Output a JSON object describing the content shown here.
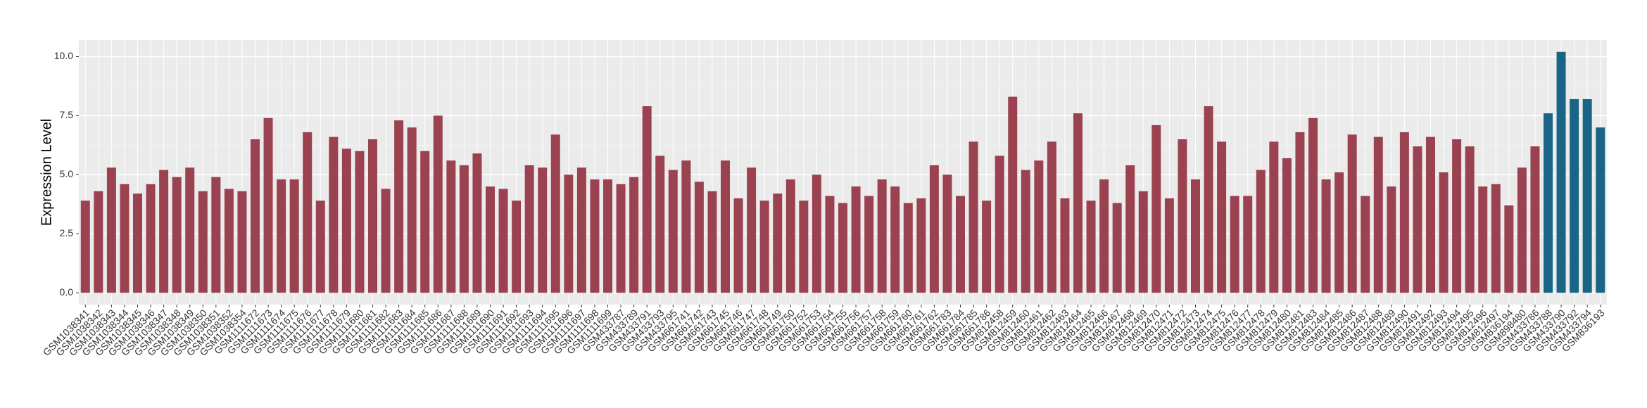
{
  "chart_data": {
    "type": "bar",
    "y_label": "Expression Level",
    "categories": [
      "GSM1038341",
      "GSM1038342",
      "GSM1038343",
      "GSM1038344",
      "GSM1038345",
      "GSM1038346",
      "GSM1038347",
      "GSM1038348",
      "GSM1038349",
      "GSM1038350",
      "GSM1038351",
      "GSM1038352",
      "GSM1038354",
      "GSM1111672",
      "GSM1111673",
      "GSM1111674",
      "GSM1111675",
      "GSM1111676",
      "GSM1111677",
      "GSM1111678",
      "GSM1111679",
      "GSM1111680",
      "GSM1111681",
      "GSM1111682",
      "GSM1111683",
      "GSM1111684",
      "GSM1111685",
      "GSM1111686",
      "GSM1111687",
      "GSM1111688",
      "GSM1111689",
      "GSM1111690",
      "GSM1111691",
      "GSM1111692",
      "GSM1111693",
      "GSM1111694",
      "GSM1111695",
      "GSM1111696",
      "GSM1111697",
      "GSM1111698",
      "GSM1111699",
      "GSM433787",
      "GSM433789",
      "GSM433791",
      "GSM433793",
      "GSM433795",
      "GSM661741",
      "GSM661742",
      "GSM661743",
      "GSM661745",
      "GSM661746",
      "GSM661747",
      "GSM661748",
      "GSM661749",
      "GSM661750",
      "GSM661752",
      "GSM661753",
      "GSM661754",
      "GSM661755",
      "GSM661756",
      "GSM661757",
      "GSM661758",
      "GSM661759",
      "GSM661760",
      "GSM661761",
      "GSM661762",
      "GSM661783",
      "GSM661784",
      "GSM661785",
      "GSM661786",
      "GSM812458",
      "GSM812459",
      "GSM812460",
      "GSM812461",
      "GSM812462",
      "GSM812463",
      "GSM812464",
      "GSM812465",
      "GSM812466",
      "GSM812467",
      "GSM812468",
      "GSM812469",
      "GSM812470",
      "GSM812471",
      "GSM812472",
      "GSM812473",
      "GSM812474",
      "GSM812475",
      "GSM812476",
      "GSM812477",
      "GSM812478",
      "GSM812479",
      "GSM812480",
      "GSM812481",
      "GSM812483",
      "GSM812484",
      "GSM812485",
      "GSM812486",
      "GSM812487",
      "GSM812488",
      "GSM812489",
      "GSM812490",
      "GSM812491",
      "GSM812492",
      "GSM812493",
      "GSM812494",
      "GSM812495",
      "GSM812496",
      "GSM812497",
      "GSM836194",
      "GSM898480",
      "GSM433786",
      "GSM433788",
      "GSM433790",
      "GSM433792",
      "GSM433794",
      "GSM836193"
    ],
    "values": [
      3.9,
      4.3,
      5.3,
      4.6,
      4.2,
      4.6,
      5.2,
      4.9,
      5.3,
      4.3,
      4.9,
      4.4,
      4.3,
      6.5,
      7.4,
      4.8,
      4.8,
      6.8,
      3.9,
      6.6,
      6.1,
      6.0,
      6.5,
      4.4,
      7.3,
      7.0,
      6.0,
      7.5,
      5.6,
      5.4,
      5.9,
      4.5,
      4.4,
      3.9,
      5.4,
      5.3,
      6.7,
      5.0,
      5.3,
      4.8,
      4.8,
      4.6,
      4.9,
      7.9,
      5.8,
      5.2,
      5.6,
      4.7,
      4.3,
      5.6,
      4.0,
      5.3,
      3.9,
      4.2,
      4.8,
      3.9,
      5.0,
      4.1,
      3.8,
      4.5,
      4.1,
      4.8,
      4.5,
      3.8,
      4.0,
      5.4,
      5.0,
      4.1,
      6.4,
      3.9,
      5.8,
      8.3,
      5.2,
      5.6,
      6.4,
      4.0,
      7.6,
      3.9,
      4.8,
      3.8,
      5.4,
      4.3,
      7.1,
      4.0,
      6.5,
      4.8,
      7.9,
      6.4,
      4.1,
      4.1,
      5.2,
      6.4,
      5.7,
      6.8,
      7.4,
      4.8,
      5.1,
      6.7,
      4.1,
      6.6,
      4.5,
      6.8,
      6.2,
      6.6,
      5.1,
      6.5,
      6.2,
      4.5,
      4.6,
      3.7,
      5.3,
      6.2,
      7.6,
      10.2,
      8.2,
      8.2,
      7.0
    ],
    "colors": [
      "#9b4250",
      "#9b4250",
      "#9b4250",
      "#9b4250",
      "#9b4250",
      "#9b4250",
      "#9b4250",
      "#9b4250",
      "#9b4250",
      "#9b4250",
      "#9b4250",
      "#9b4250",
      "#9b4250",
      "#9b4250",
      "#9b4250",
      "#9b4250",
      "#9b4250",
      "#9b4250",
      "#9b4250",
      "#9b4250",
      "#9b4250",
      "#9b4250",
      "#9b4250",
      "#9b4250",
      "#9b4250",
      "#9b4250",
      "#9b4250",
      "#9b4250",
      "#9b4250",
      "#9b4250",
      "#9b4250",
      "#9b4250",
      "#9b4250",
      "#9b4250",
      "#9b4250",
      "#9b4250",
      "#9b4250",
      "#9b4250",
      "#9b4250",
      "#9b4250",
      "#9b4250",
      "#9b4250",
      "#9b4250",
      "#9b4250",
      "#9b4250",
      "#9b4250",
      "#9b4250",
      "#9b4250",
      "#9b4250",
      "#9b4250",
      "#9b4250",
      "#9b4250",
      "#9b4250",
      "#9b4250",
      "#9b4250",
      "#9b4250",
      "#9b4250",
      "#9b4250",
      "#9b4250",
      "#9b4250",
      "#9b4250",
      "#9b4250",
      "#9b4250",
      "#9b4250",
      "#9b4250",
      "#9b4250",
      "#9b4250",
      "#9b4250",
      "#9b4250",
      "#9b4250",
      "#9b4250",
      "#9b4250",
      "#9b4250",
      "#9b4250",
      "#9b4250",
      "#9b4250",
      "#9b4250",
      "#9b4250",
      "#9b4250",
      "#9b4250",
      "#9b4250",
      "#9b4250",
      "#9b4250",
      "#9b4250",
      "#9b4250",
      "#9b4250",
      "#9b4250",
      "#9b4250",
      "#9b4250",
      "#9b4250",
      "#9b4250",
      "#9b4250",
      "#9b4250",
      "#9b4250",
      "#9b4250",
      "#9b4250",
      "#9b4250",
      "#9b4250",
      "#9b4250",
      "#9b4250",
      "#9b4250",
      "#9b4250",
      "#9b4250",
      "#9b4250",
      "#9b4250",
      "#9b4250",
      "#9b4250",
      "#9b4250",
      "#9b4250",
      "#9b4250",
      "#9b4250",
      "#9b4250",
      "#1a6585",
      "#1a6585",
      "#1a6585",
      "#1a6585",
      "#1a6585"
    ],
    "ylim": [
      -0.5,
      10.7
    ],
    "yticks": [
      {
        "value": 0,
        "label": "0.0"
      },
      2.5,
      {
        "value": 5,
        "label": "5.0"
      },
      7.5,
      {
        "value": 10,
        "label": "10.0"
      }
    ],
    "grid": true
  }
}
